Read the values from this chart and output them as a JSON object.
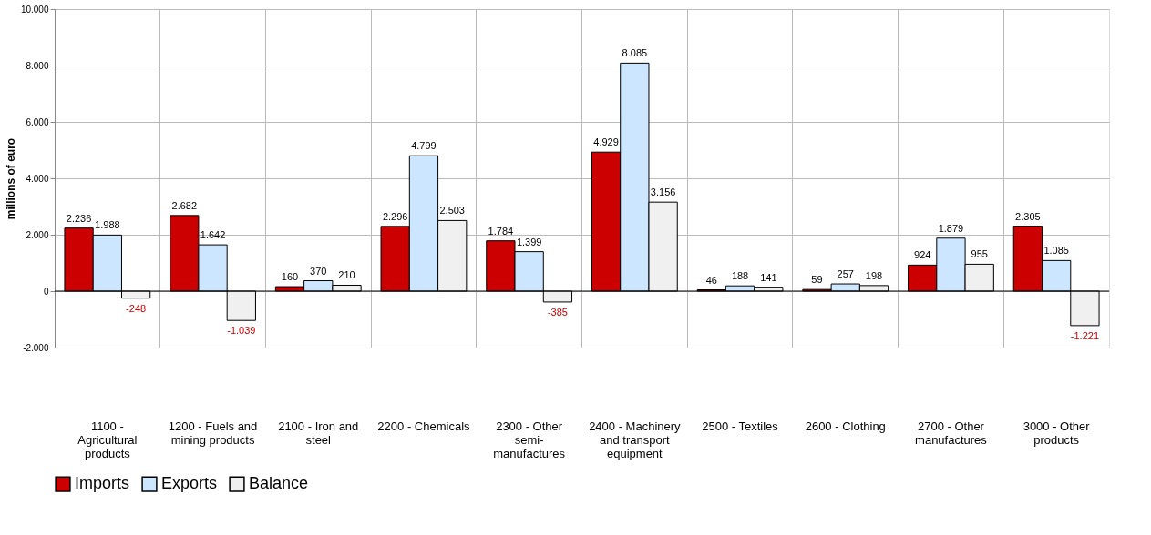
{
  "chart_data": {
    "type": "bar",
    "ylabel": "millions of euro",
    "categories": [
      "1100 - Agricultural products",
      "1200 - Fuels and mining products",
      "2100 - Iron and steel",
      "2200 - Chemicals",
      "2300 - Other semi-manufactures",
      "2400 - Machinery and transport equipment",
      "2500 - Textiles",
      "2600 - Clothing",
      "2700 - Other manufactures",
      "3000 - Other products"
    ],
    "series": [
      {
        "name": "Imports",
        "color": "#cc0000",
        "values": [
          2236,
          2682,
          160,
          2296,
          1784,
          4929,
          46,
          59,
          924,
          2305
        ],
        "value_labels": [
          "2.236",
          "2.682",
          "160",
          "2.296",
          "1.784",
          "4.929",
          "46",
          "59",
          "924",
          "2.305"
        ]
      },
      {
        "name": "Exports",
        "color": "#cce6ff",
        "values": [
          1988,
          1642,
          370,
          4799,
          1399,
          8085,
          188,
          257,
          1879,
          1085
        ],
        "value_labels": [
          "1.988",
          "1.642",
          "370",
          "4.799",
          "1.399",
          "8.085",
          "188",
          "257",
          "1.879",
          "1.085"
        ]
      },
      {
        "name": "Balance",
        "color": "#f0f0f0",
        "values": [
          -248,
          -1039,
          210,
          2503,
          -385,
          3156,
          141,
          198,
          955,
          -1221
        ],
        "value_labels": [
          "-248",
          "-1.039",
          "210",
          "2.503",
          "-385",
          "3.156",
          "141",
          "198",
          "955",
          "-1.221"
        ]
      }
    ],
    "ylim": [
      -2000,
      10000
    ],
    "yticks": [
      {
        "value": -2000,
        "label": "-2.000"
      },
      {
        "value": 0,
        "label": "0"
      },
      {
        "value": 2000,
        "label": "2.000"
      },
      {
        "value": 4000,
        "label": "4.000"
      },
      {
        "value": 6000,
        "label": "6.000"
      },
      {
        "value": 8000,
        "label": "8.000"
      },
      {
        "value": 10000,
        "label": "10.000"
      }
    ],
    "grid": true,
    "legend": "bottom"
  }
}
